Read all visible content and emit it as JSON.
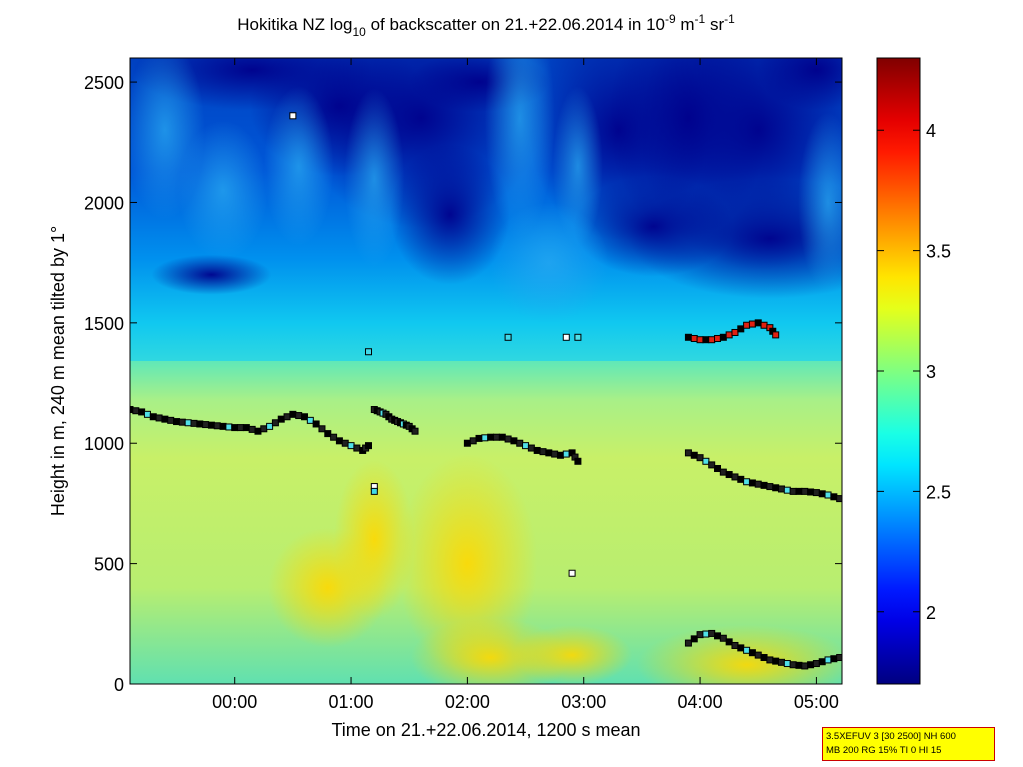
{
  "chart_data": {
    "type": "heatmap",
    "title": {
      "part1": "Hokitika NZ log",
      "sub": "10",
      "part2": " of backscatter on 21.+22.06.2014 in 10",
      "exp1": "-9",
      "part3": " m",
      "exp2": "-1",
      "part4": " sr",
      "exp3": "-1"
    },
    "xlabel": "Time on 21.+22.06.2014, 1200 s mean",
    "ylabel": "Height in m, 240 m mean tilted by 1°",
    "x_range_hours": [
      -0.9,
      5.22
    ],
    "ylim": [
      0,
      2600
    ],
    "x_ticks": [
      {
        "value": 0,
        "label": "00:00"
      },
      {
        "value": 1,
        "label": "01:00"
      },
      {
        "value": 2,
        "label": "02:00"
      },
      {
        "value": 3,
        "label": "03:00"
      },
      {
        "value": 4,
        "label": "04:00"
      },
      {
        "value": 5,
        "label": "05:00"
      }
    ],
    "y_ticks": [
      {
        "value": 0,
        "label": "0"
      },
      {
        "value": 500,
        "label": "500"
      },
      {
        "value": 1000,
        "label": "1000"
      },
      {
        "value": 1500,
        "label": "1500"
      },
      {
        "value": 2000,
        "label": "2000"
      },
      {
        "value": 2500,
        "label": "2500"
      }
    ],
    "colorbar": {
      "colormap": "jet",
      "range": [
        1.7,
        4.3
      ],
      "ticks": [
        {
          "value": 2,
          "label": "2"
        },
        {
          "value": 2.5,
          "label": "2.5"
        },
        {
          "value": 3,
          "label": "3"
        },
        {
          "value": 3.5,
          "label": "3.5"
        },
        {
          "value": 4,
          "label": "4"
        }
      ]
    },
    "field_description": {
      "upper_layer_value": 1.8,
      "transition_height_m": 1300,
      "lower_layer_value": 3.05,
      "near_surface_value": 2.8
    },
    "series": [
      {
        "role": "cloud base layer 1",
        "points": [
          [
            -0.9,
            1140
          ],
          [
            -0.8,
            1130
          ],
          [
            -0.7,
            1110
          ],
          [
            -0.6,
            1100
          ],
          [
            -0.5,
            1090
          ],
          [
            -0.4,
            1085
          ],
          [
            -0.3,
            1080
          ],
          [
            -0.2,
            1075
          ],
          [
            -0.1,
            1070
          ],
          [
            0.0,
            1065
          ],
          [
            0.1,
            1065
          ],
          [
            0.2,
            1050
          ],
          [
            0.3,
            1070
          ],
          [
            0.4,
            1100
          ],
          [
            0.5,
            1120
          ],
          [
            0.6,
            1110
          ],
          [
            0.7,
            1080
          ],
          [
            0.8,
            1040
          ],
          [
            0.9,
            1010
          ],
          [
            1.0,
            990
          ],
          [
            1.1,
            970
          ],
          [
            1.15,
            990
          ]
        ]
      },
      {
        "role": "cloud base layer 2",
        "points": [
          [
            1.2,
            1140
          ],
          [
            1.25,
            1130
          ],
          [
            1.3,
            1120
          ],
          [
            1.35,
            1100
          ],
          [
            1.4,
            1090
          ],
          [
            1.45,
            1080
          ],
          [
            1.5,
            1070
          ],
          [
            1.55,
            1050
          ]
        ]
      },
      {
        "role": "cloud base layer 3",
        "points": [
          [
            2.0,
            1000
          ],
          [
            2.1,
            1020
          ],
          [
            2.2,
            1025
          ],
          [
            2.3,
            1025
          ],
          [
            2.4,
            1010
          ],
          [
            2.5,
            990
          ],
          [
            2.6,
            970
          ],
          [
            2.7,
            960
          ],
          [
            2.8,
            950
          ],
          [
            2.9,
            960
          ],
          [
            2.95,
            925
          ]
        ]
      },
      {
        "role": "cloud base layer 4",
        "points": [
          [
            3.9,
            960
          ],
          [
            4.0,
            940
          ],
          [
            4.1,
            910
          ],
          [
            4.2,
            880
          ],
          [
            4.3,
            860
          ],
          [
            4.4,
            840
          ],
          [
            4.5,
            830
          ],
          [
            4.6,
            820
          ],
          [
            4.7,
            810
          ],
          [
            4.8,
            800
          ],
          [
            4.9,
            800
          ],
          [
            5.0,
            795
          ],
          [
            5.1,
            785
          ],
          [
            5.2,
            770
          ]
        ]
      },
      {
        "role": "upper cloud layer",
        "points": [
          [
            3.9,
            1440
          ],
          [
            4.0,
            1430
          ],
          [
            4.1,
            1430
          ],
          [
            4.2,
            1440
          ],
          [
            4.3,
            1460
          ],
          [
            4.4,
            1490
          ],
          [
            4.5,
            1500
          ],
          [
            4.6,
            1480
          ],
          [
            4.65,
            1450
          ]
        ]
      },
      {
        "role": "near surface layer",
        "points": [
          [
            3.9,
            170
          ],
          [
            4.0,
            205
          ],
          [
            4.1,
            210
          ],
          [
            4.2,
            190
          ],
          [
            4.3,
            160
          ],
          [
            4.4,
            140
          ],
          [
            4.5,
            120
          ],
          [
            4.6,
            100
          ],
          [
            4.7,
            90
          ],
          [
            4.8,
            80
          ],
          [
            4.9,
            75
          ],
          [
            5.0,
            85
          ],
          [
            5.1,
            100
          ],
          [
            5.2,
            110
          ]
        ]
      },
      {
        "role": "isolated points",
        "points": [
          [
            0.5,
            2360
          ],
          [
            2.35,
            1440
          ],
          [
            2.85,
            1440
          ],
          [
            2.95,
            1440
          ],
          [
            1.2,
            820
          ],
          [
            1.2,
            800
          ],
          [
            2.9,
            460
          ],
          [
            1.15,
            1380
          ]
        ]
      }
    ]
  },
  "info_box": {
    "line1": "3.5XEFUV 3 [30 2500] NH 600",
    "line2": "MB 200 RG 15% TI 0 HI 15"
  }
}
